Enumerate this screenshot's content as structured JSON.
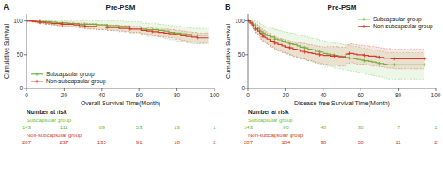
{
  "chart_data": [
    {
      "type": "step",
      "title": "Pre-PSM",
      "panel_label": "A",
      "xlabel": "Overall Survival Time(Month)",
      "ylabel": "Cumulative Survival",
      "xlim": [
        0,
        100
      ],
      "ylim": [
        0,
        110
      ],
      "xticks": [
        0,
        20,
        40,
        60,
        80,
        100
      ],
      "yticks": [
        0,
        50,
        100
      ],
      "grid": false,
      "legend": "lower left",
      "series": [
        {
          "name": "Subcapsular group",
          "color": "#6abf3e",
          "marker": "plus",
          "x": [
            0,
            1,
            3,
            5,
            7,
            10,
            13,
            16,
            19,
            22,
            25,
            28,
            31,
            34,
            37,
            40,
            43,
            46,
            49,
            52,
            55,
            58,
            61,
            64,
            67,
            70,
            73,
            76,
            79,
            82,
            85,
            88,
            91,
            94,
            97
          ],
          "values": [
            100,
            100,
            100,
            99,
            99,
            99,
            98,
            97,
            97,
            96,
            96,
            95,
            95,
            95,
            94,
            94,
            93,
            93,
            92,
            92,
            91,
            91,
            88,
            87,
            87,
            86,
            85,
            83,
            82,
            81,
            80,
            79,
            79,
            79,
            79
          ],
          "lower": [
            100,
            100,
            99,
            97,
            96,
            95,
            94,
            93,
            92,
            91,
            90,
            89,
            89,
            88,
            87,
            87,
            86,
            85,
            84,
            84,
            82,
            82,
            79,
            77,
            77,
            76,
            74,
            72,
            70,
            69,
            67,
            66,
            66,
            66,
            66
          ],
          "upper": [
            100,
            100,
            100,
            100,
            100,
            100,
            100,
            100,
            100,
            100,
            100,
            100,
            100,
            100,
            100,
            100,
            100,
            100,
            100,
            99,
            99,
            99,
            97,
            96,
            96,
            95,
            94,
            93,
            92,
            91,
            90,
            89,
            89,
            89,
            89
          ]
        },
        {
          "name": "Non-subcapsular group",
          "color": "#d63b2a",
          "marker": "plus",
          "x": [
            0,
            1,
            3,
            5,
            7,
            10,
            13,
            16,
            19,
            22,
            25,
            28,
            31,
            34,
            37,
            40,
            43,
            46,
            49,
            52,
            55,
            58,
            61,
            64,
            67,
            70,
            73,
            76,
            79,
            82,
            85,
            88,
            91,
            94,
            97
          ],
          "values": [
            100,
            100,
            99,
            99,
            98,
            97,
            96,
            96,
            95,
            95,
            94,
            93,
            92,
            92,
            91,
            91,
            90,
            90,
            89,
            89,
            88,
            88,
            86,
            85,
            84,
            83,
            82,
            81,
            80,
            78,
            77,
            76,
            75,
            75,
            75
          ],
          "lower": [
            100,
            100,
            98,
            97,
            96,
            95,
            94,
            93,
            92,
            92,
            91,
            90,
            88,
            88,
            87,
            87,
            86,
            86,
            85,
            84,
            83,
            83,
            81,
            80,
            78,
            77,
            76,
            75,
            73,
            71,
            70,
            68,
            67,
            67,
            67
          ],
          "upper": [
            100,
            100,
            100,
            100,
            100,
            99,
            99,
            98,
            98,
            98,
            97,
            97,
            96,
            96,
            95,
            95,
            94,
            94,
            93,
            93,
            92,
            92,
            91,
            90,
            89,
            88,
            88,
            87,
            86,
            85,
            84,
            83,
            82,
            82,
            82
          ]
        }
      ],
      "risk_table": {
        "title": "Number at risk",
        "x": [
          0,
          20,
          40,
          60,
          80,
          100
        ],
        "rows": [
          {
            "name": "Subcapsular group",
            "color": "#6abf3e",
            "values": [
              143,
              111,
              69,
              53,
              13,
              1
            ]
          },
          {
            "name": "Non-subcapsular group",
            "color": "#d63b2a",
            "values": [
              287,
              237,
              135,
              91,
              18,
              2
            ]
          }
        ]
      }
    },
    {
      "type": "step",
      "title": "Pre-PSM",
      "panel_label": "B",
      "xlabel": "Disease-free Survival Time(Month)",
      "ylabel": "Cumulative Survival",
      "xlim": [
        0,
        100
      ],
      "ylim": [
        0,
        110
      ],
      "xticks": [
        0,
        20,
        40,
        60,
        80,
        100
      ],
      "yticks": [
        0,
        50,
        100
      ],
      "grid": false,
      "legend": "upper right",
      "series": [
        {
          "name": "Subcapsular group",
          "color": "#6abf3e",
          "marker": "plus",
          "x": [
            0,
            1,
            2,
            3,
            4,
            5,
            6,
            7,
            8,
            9,
            10,
            12,
            14,
            16,
            18,
            20,
            22,
            24,
            26,
            28,
            30,
            32,
            34,
            36,
            38,
            40,
            42,
            44,
            46,
            48,
            50,
            52,
            54,
            56,
            58,
            60,
            62,
            64,
            66,
            68,
            70,
            72,
            74,
            76,
            78,
            82,
            86,
            90,
            94
          ],
          "values": [
            100,
            98,
            96,
            94,
            91,
            89,
            86,
            84,
            82,
            80,
            78,
            76,
            73,
            72,
            70,
            68,
            66,
            65,
            63,
            61,
            60,
            58,
            57,
            55,
            54,
            52,
            51,
            50,
            49,
            48,
            47,
            46,
            45,
            44,
            43,
            42,
            41,
            40,
            39,
            38,
            37,
            36,
            35,
            35,
            35,
            35,
            35,
            35,
            35
          ],
          "lower": [
            100,
            95,
            91,
            87,
            83,
            80,
            76,
            73,
            70,
            68,
            65,
            62,
            58,
            56,
            54,
            52,
            50,
            48,
            46,
            44,
            43,
            41,
            39,
            37,
            36,
            34,
            33,
            32,
            30,
            29,
            28,
            27,
            26,
            25,
            24,
            23,
            21,
            20,
            19,
            18,
            17,
            16,
            14,
            14,
            14,
            14,
            14,
            14,
            14
          ],
          "upper": [
            100,
            100,
            100,
            100,
            99,
            98,
            96,
            95,
            93,
            92,
            91,
            89,
            87,
            86,
            84,
            83,
            82,
            81,
            79,
            78,
            77,
            75,
            74,
            73,
            71,
            70,
            69,
            68,
            67,
            66,
            65,
            64,
            63,
            62,
            61,
            60,
            59,
            58,
            57,
            56,
            55,
            54,
            53,
            53,
            53,
            53,
            53,
            53,
            53
          ]
        },
        {
          "name": "Non-subcapsular group",
          "color": "#d63b2a",
          "marker": "plus",
          "x": [
            0,
            1,
            2,
            3,
            4,
            5,
            6,
            7,
            8,
            9,
            10,
            12,
            14,
            16,
            18,
            20,
            22,
            24,
            26,
            28,
            30,
            32,
            34,
            36,
            38,
            40,
            42,
            44,
            46,
            48,
            50,
            52,
            54,
            56,
            58,
            60,
            62,
            64,
            66,
            68,
            70,
            72,
            74,
            76,
            78,
            82,
            86,
            90,
            94
          ],
          "values": [
            100,
            97,
            94,
            91,
            88,
            85,
            82,
            80,
            77,
            75,
            73,
            70,
            67,
            65,
            63,
            61,
            60,
            58,
            57,
            55,
            54,
            53,
            52,
            51,
            50,
            49,
            49,
            48,
            48,
            47,
            47,
            51,
            52,
            51,
            50,
            50,
            49,
            48,
            48,
            47,
            46,
            45,
            45,
            44,
            44,
            44,
            44,
            44,
            44
          ],
          "lower": [
            100,
            94,
            90,
            86,
            82,
            79,
            75,
            72,
            69,
            67,
            65,
            61,
            58,
            55,
            53,
            51,
            49,
            47,
            45,
            44,
            42,
            41,
            40,
            38,
            37,
            36,
            35,
            34,
            34,
            33,
            33,
            37,
            38,
            37,
            36,
            36,
            35,
            34,
            33,
            33,
            32,
            31,
            30,
            30,
            29,
            29,
            29,
            29,
            29
          ],
          "upper": [
            100,
            100,
            99,
            97,
            95,
            93,
            90,
            88,
            86,
            84,
            82,
            79,
            76,
            74,
            73,
            71,
            70,
            68,
            68,
            67,
            66,
            65,
            64,
            63,
            62,
            61,
            62,
            62,
            62,
            61,
            61,
            65,
            66,
            65,
            64,
            64,
            63,
            62,
            62,
            61,
            60,
            59,
            59,
            58,
            58,
            58,
            58,
            58,
            58
          ]
        }
      ],
      "risk_table": {
        "title": "Number at risk",
        "x": [
          0,
          20,
          40,
          60,
          80,
          100
        ],
        "rows": [
          {
            "name": "Subcapsular group",
            "color": "#6abf3e",
            "values": [
              143,
              90,
              48,
              36,
              7,
              1
            ]
          },
          {
            "name": "Non-subcapsular group",
            "color": "#d63b2a",
            "values": [
              287,
              184,
              98,
              58,
              11,
              2
            ]
          }
        ]
      }
    }
  ]
}
